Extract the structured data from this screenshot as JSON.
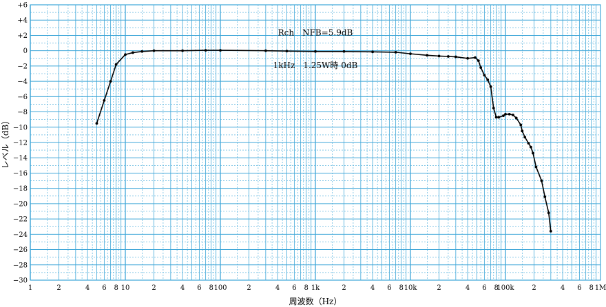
{
  "chart_data": {
    "type": "line",
    "xscale": "log",
    "xlim": [
      1,
      1000000
    ],
    "ylim": [
      -30,
      6
    ],
    "xlabel": "周波数（Hz）",
    "ylabel": "レベル（dB）",
    "grid": true,
    "colors": {
      "grid": "#3ea6d8",
      "line": "#000000"
    },
    "x_tick_labels": [
      {
        "x": 1,
        "label": "1"
      },
      {
        "x": 2,
        "label": "2"
      },
      {
        "x": 4,
        "label": "4"
      },
      {
        "x": 6,
        "label": "6"
      },
      {
        "x": 8,
        "label": "8"
      },
      {
        "x": 10,
        "label": "10"
      },
      {
        "x": 20,
        "label": "2"
      },
      {
        "x": 40,
        "label": "4"
      },
      {
        "x": 60,
        "label": "6"
      },
      {
        "x": 80,
        "label": "8"
      },
      {
        "x": 100,
        "label": "100"
      },
      {
        "x": 200,
        "label": "2"
      },
      {
        "x": 400,
        "label": "4"
      },
      {
        "x": 600,
        "label": "6"
      },
      {
        "x": 800,
        "label": "8"
      },
      {
        "x": 1000,
        "label": "1k"
      },
      {
        "x": 2000,
        "label": "2"
      },
      {
        "x": 4000,
        "label": "4"
      },
      {
        "x": 6000,
        "label": "6"
      },
      {
        "x": 8000,
        "label": "8"
      },
      {
        "x": 10000,
        "label": "10k"
      },
      {
        "x": 20000,
        "label": "2"
      },
      {
        "x": 40000,
        "label": "4"
      },
      {
        "x": 60000,
        "label": "6"
      },
      {
        "x": 80000,
        "label": "8"
      },
      {
        "x": 100000,
        "label": "100k"
      },
      {
        "x": 200000,
        "label": "2"
      },
      {
        "x": 400000,
        "label": "4"
      },
      {
        "x": 600000,
        "label": "6"
      },
      {
        "x": 800000,
        "label": "8"
      },
      {
        "x": 1000000,
        "label": "1M"
      }
    ],
    "y_tick_labels": [
      {
        "y": 6,
        "label": "+6"
      },
      {
        "y": 4,
        "label": "+4"
      },
      {
        "y": 2,
        "label": "+2"
      },
      {
        "y": 0,
        "label": "0"
      },
      {
        "y": -2,
        "label": "−2"
      },
      {
        "y": -4,
        "label": "−4"
      },
      {
        "y": -6,
        "label": "−6"
      },
      {
        "y": -8,
        "label": "−8"
      },
      {
        "y": -10,
        "label": "−10"
      },
      {
        "y": -12,
        "label": "−12"
      },
      {
        "y": -14,
        "label": "−14"
      },
      {
        "y": -16,
        "label": "−16"
      },
      {
        "y": -18,
        "label": "−18"
      },
      {
        "y": -20,
        "label": "−20"
      },
      {
        "y": -22,
        "label": "−22"
      },
      {
        "y": -24,
        "label": "−24"
      },
      {
        "y": -26,
        "label": "−26"
      },
      {
        "y": -28,
        "label": "−28"
      },
      {
        "y": -30,
        "label": "−30"
      }
    ],
    "annotations": [
      {
        "text": "Rch　NFB=5.9dB",
        "x": 1000,
        "y": 2.0
      },
      {
        "text": "1kHz　1.25W時 0dB",
        "x": 1000,
        "y": -2.3
      }
    ],
    "series": [
      {
        "values": [
          {
            "x": 5,
            "y": -9.5
          },
          {
            "x": 6,
            "y": -6.5
          },
          {
            "x": 7,
            "y": -4.0
          },
          {
            "x": 8,
            "y": -1.8
          },
          {
            "x": 10,
            "y": -0.5
          },
          {
            "x": 12,
            "y": -0.25
          },
          {
            "x": 15,
            "y": -0.1
          },
          {
            "x": 20,
            "y": 0.0
          },
          {
            "x": 40,
            "y": 0.0
          },
          {
            "x": 70,
            "y": 0.05
          },
          {
            "x": 100,
            "y": 0.05
          },
          {
            "x": 300,
            "y": 0.0
          },
          {
            "x": 500,
            "y": -0.05
          },
          {
            "x": 1000,
            "y": -0.1
          },
          {
            "x": 2000,
            "y": -0.1
          },
          {
            "x": 4000,
            "y": -0.15
          },
          {
            "x": 7000,
            "y": -0.2
          },
          {
            "x": 10000,
            "y": -0.4
          },
          {
            "x": 15000,
            "y": -0.6
          },
          {
            "x": 20000,
            "y": -0.7
          },
          {
            "x": 25000,
            "y": -0.75
          },
          {
            "x": 30000,
            "y": -0.8
          },
          {
            "x": 40000,
            "y": -1.0
          },
          {
            "x": 48000,
            "y": -0.9
          },
          {
            "x": 52000,
            "y": -1.3
          },
          {
            "x": 55000,
            "y": -2.2
          },
          {
            "x": 60000,
            "y": -3.2
          },
          {
            "x": 65000,
            "y": -3.8
          },
          {
            "x": 70000,
            "y": -4.7
          },
          {
            "x": 75000,
            "y": -7.5
          },
          {
            "x": 80000,
            "y": -8.7
          },
          {
            "x": 85000,
            "y": -8.7
          },
          {
            "x": 95000,
            "y": -8.5
          },
          {
            "x": 100000,
            "y": -8.3
          },
          {
            "x": 110000,
            "y": -8.3
          },
          {
            "x": 120000,
            "y": -8.4
          },
          {
            "x": 130000,
            "y": -8.8
          },
          {
            "x": 145000,
            "y": -9.7
          },
          {
            "x": 150000,
            "y": -10.5
          },
          {
            "x": 160000,
            "y": -11.3
          },
          {
            "x": 175000,
            "y": -12.1
          },
          {
            "x": 185000,
            "y": -12.6
          },
          {
            "x": 195000,
            "y": -13.4
          },
          {
            "x": 210000,
            "y": -15.2
          },
          {
            "x": 240000,
            "y": -17.0
          },
          {
            "x": 260000,
            "y": -19.1
          },
          {
            "x": 285000,
            "y": -21.2
          },
          {
            "x": 300000,
            "y": -23.6
          }
        ]
      }
    ]
  }
}
